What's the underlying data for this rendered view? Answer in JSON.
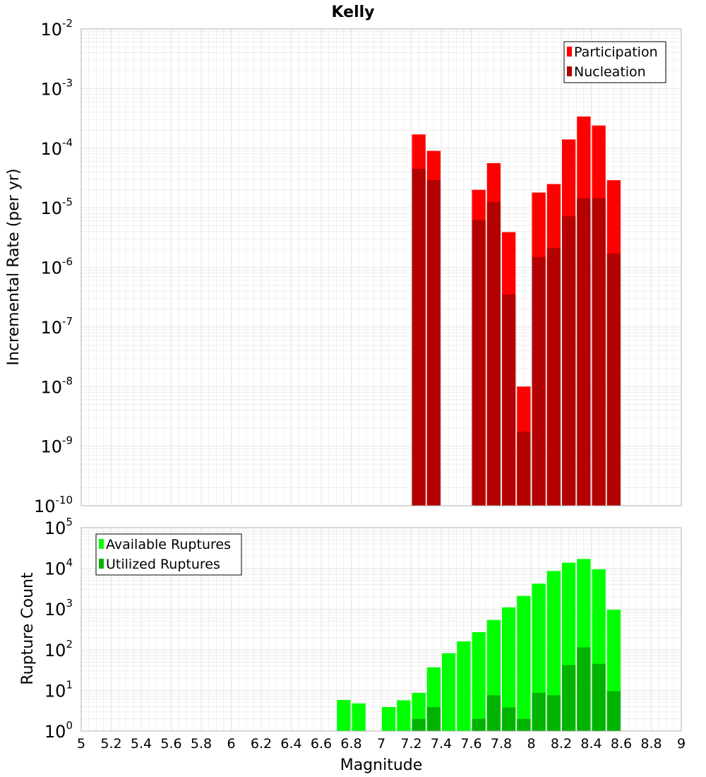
{
  "title": "Kelly",
  "xlabel": "Magnitude",
  "colors": {
    "participation": "#ff0000",
    "nucleation": "#b30000",
    "available": "#00ff00",
    "utilized": "#00b300",
    "grid": "#e4e4e4",
    "frame": "#b0b0b0"
  },
  "chart_data": [
    {
      "type": "bar",
      "ylabel": "Incremental Rate (per yr)",
      "yscale": "log",
      "ylim_exp": [
        -10,
        -2
      ],
      "xlim": [
        5,
        9
      ],
      "bar_width": 0.1,
      "grid": true,
      "legend_position": "top-right",
      "series": [
        {
          "name": "Participation",
          "x": [
            7.25,
            7.35,
            7.65,
            7.75,
            7.85,
            7.95,
            8.05,
            8.15,
            8.25,
            8.35,
            8.45,
            8.55
          ],
          "values": [
            0.00017,
            9e-05,
            2e-05,
            5.6e-05,
            3.9e-06,
            1e-08,
            1.8e-05,
            2.5e-05,
            0.00014,
            0.00034,
            0.00024,
            2.9e-05
          ]
        },
        {
          "name": "Nucleation",
          "x": [
            7.25,
            7.35,
            7.65,
            7.75,
            7.85,
            7.95,
            8.05,
            8.15,
            8.25,
            8.35,
            8.45,
            8.55
          ],
          "values": [
            4.5e-05,
            2.9e-05,
            6.2e-06,
            1.25e-05,
            3.5e-07,
            1.75e-09,
            1.5e-06,
            2.1e-06,
            7.2e-06,
            1.45e-05,
            1.45e-05,
            1.7e-06
          ]
        }
      ]
    },
    {
      "type": "bar",
      "ylabel": "Rupture Count",
      "yscale": "log",
      "ylim_exp": [
        0,
        5
      ],
      "xlim": [
        5,
        9
      ],
      "bar_width": 0.1,
      "grid": true,
      "legend_position": "top-left",
      "xticks": [
        "5",
        "5.2",
        "5.4",
        "5.6",
        "5.8",
        "6",
        "6.2",
        "6.4",
        "6.6",
        "6.8",
        "7",
        "7.2",
        "7.4",
        "7.6",
        "7.8",
        "8",
        "8.2",
        "8.4",
        "8.6",
        "8.8",
        "9"
      ],
      "series": [
        {
          "name": "Available Ruptures",
          "x": [
            6.75,
            6.85,
            7.05,
            7.15,
            7.25,
            7.35,
            7.45,
            7.55,
            7.65,
            7.75,
            7.85,
            7.95,
            8.05,
            8.15,
            8.25,
            8.35,
            8.45,
            8.55
          ],
          "values": [
            5.8,
            4.8,
            3.9,
            5.7,
            8.7,
            37,
            82,
            160,
            270,
            540,
            1100,
            2100,
            4200,
            8600,
            13800,
            17000,
            9500,
            960
          ]
        },
        {
          "name": "Utilized Ruptures",
          "x": [
            7.25,
            7.35,
            7.65,
            7.75,
            7.85,
            7.95,
            8.05,
            8.15,
            8.25,
            8.35,
            8.45,
            8.55
          ],
          "values": [
            2,
            3.9,
            2,
            7.6,
            3.8,
            2,
            8.7,
            7.6,
            42,
            115,
            45,
            9.5
          ]
        }
      ]
    }
  ]
}
